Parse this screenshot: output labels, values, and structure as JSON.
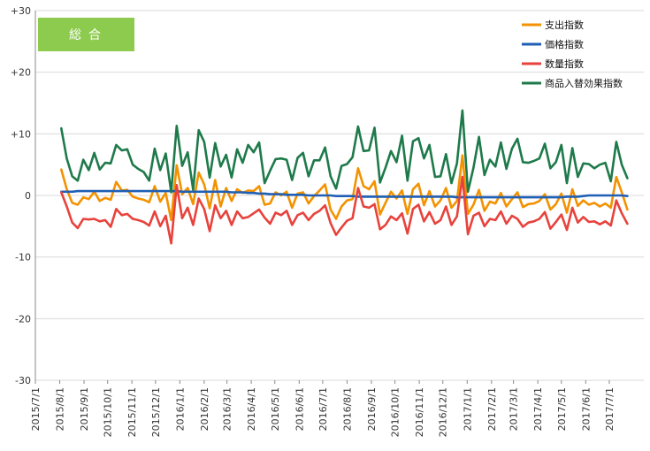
{
  "chart_data": {
    "type": "line",
    "title": "総合",
    "ylim": [
      -30,
      30
    ],
    "y_ticks": [
      30,
      20,
      10,
      0,
      -10,
      -20,
      -30
    ],
    "y_tick_labels": [
      "+30",
      "+20",
      "+10",
      "0",
      "-10",
      "-20",
      "-30"
    ],
    "x_tick_labels": [
      "2015/7/1",
      "2015/8/1",
      "2015/9/1",
      "2015/10/1",
      "2015/11/1",
      "2015/12/1",
      "2016/1/1",
      "2016/2/1",
      "2016/3/1",
      "2016/4/1",
      "2016/5/1",
      "2016/6/1",
      "2016/7/1",
      "2016/8/1",
      "2016/9/1",
      "2016/10/1",
      "2016/11/1",
      "2016/12/1",
      "2017/1/1",
      "2017/2/1",
      "2017/3/1",
      "2017/4/1",
      "2017/5/1",
      "2017/6/1",
      "2017/7/1"
    ],
    "x_start": "2015/7/1",
    "x_end": "2017/8/14",
    "series_start": "2015/8/3",
    "series_interval": "weekly",
    "legend_position": "top-right",
    "grid": "horizontal",
    "series": [
      {
        "name": "支出指数",
        "color": "#F39200",
        "values": [
          4.2,
          1.0,
          -1.2,
          -1.5,
          -0.3,
          -0.6,
          0.6,
          -0.9,
          -0.4,
          -0.7,
          2.2,
          0.8,
          0.9,
          -0.2,
          -0.5,
          -0.7,
          -1.1,
          1.5,
          -1.0,
          0.4,
          -4.0,
          4.9,
          0.2,
          1.2,
          -1.4,
          3.7,
          1.8,
          -2.1,
          2.5,
          -1.8,
          1.2,
          -0.9,
          1.0,
          0.4,
          0.8,
          0.7,
          1.5,
          -1.5,
          -1.3,
          0.5,
          0.0,
          0.6,
          -2.0,
          0.3,
          0.5,
          -1.3,
          -0.1,
          0.8,
          1.8,
          -2.3,
          -3.8,
          -1.8,
          -0.8,
          -0.6,
          4.4,
          1.5,
          1.0,
          2.3,
          -3.1,
          -1.2,
          0.6,
          -0.5,
          0.8,
          -3.0,
          1.0,
          1.9,
          -1.6,
          0.7,
          -1.8,
          -0.8,
          1.2,
          -2.0,
          -0.9,
          6.5,
          -3.0,
          -1.5,
          0.9,
          -2.5,
          -1.0,
          -1.3,
          0.4,
          -1.8,
          -0.6,
          0.5,
          -1.9,
          -1.4,
          -1.3,
          -0.9,
          0.2,
          -2.3,
          -1.4,
          0.3,
          -2.8,
          1.0,
          -1.7,
          -0.8,
          -1.5,
          -1.2,
          -1.8,
          -1.3,
          -2.0,
          3.0,
          0.5,
          -2.3
        ]
      },
      {
        "name": "価格指数",
        "color": "#1F5FB5",
        "values": [
          0.6,
          0.6,
          0.6,
          0.7,
          0.7,
          0.7,
          0.7,
          0.7,
          0.7,
          0.7,
          0.7,
          0.7,
          0.7,
          0.7,
          0.7,
          0.7,
          0.7,
          0.7,
          0.7,
          0.7,
          0.7,
          0.7,
          0.6,
          0.6,
          0.6,
          0.6,
          0.6,
          0.6,
          0.6,
          0.6,
          0.6,
          0.5,
          0.5,
          0.5,
          0.4,
          0.4,
          0.3,
          0.3,
          0.2,
          0.2,
          0.2,
          0.1,
          0.1,
          0.1,
          0.1,
          0.0,
          0.0,
          0.0,
          0.0,
          0.0,
          -0.1,
          -0.1,
          -0.1,
          -0.1,
          -0.2,
          -0.2,
          -0.2,
          -0.2,
          -0.2,
          -0.2,
          -0.2,
          -0.2,
          -0.2,
          -0.2,
          -0.2,
          -0.2,
          -0.2,
          -0.2,
          -0.2,
          -0.2,
          -0.2,
          -0.2,
          -0.3,
          -0.3,
          -0.3,
          -0.3,
          -0.3,
          -0.3,
          -0.3,
          -0.3,
          -0.3,
          -0.3,
          -0.3,
          -0.3,
          -0.3,
          -0.3,
          -0.3,
          -0.3,
          -0.3,
          -0.3,
          -0.3,
          -0.3,
          -0.2,
          -0.2,
          -0.2,
          -0.1,
          0.0,
          0.0,
          0.0,
          0.0,
          0.0,
          0.0,
          0.0,
          -0.1
        ]
      },
      {
        "name": "数量指数",
        "color": "#E8423C",
        "values": [
          0.5,
          -1.8,
          -4.4,
          -5.3,
          -3.8,
          -3.9,
          -3.8,
          -4.2,
          -4.0,
          -5.1,
          -2.2,
          -3.2,
          -3.0,
          -3.8,
          -4.0,
          -4.3,
          -4.9,
          -2.6,
          -5.0,
          -3.3,
          -7.8,
          1.7,
          -3.7,
          -2.0,
          -4.8,
          -0.5,
          -2.2,
          -5.8,
          -1.6,
          -3.7,
          -2.5,
          -4.8,
          -2.6,
          -3.7,
          -3.5,
          -2.9,
          -2.3,
          -3.6,
          -4.6,
          -2.8,
          -3.2,
          -2.5,
          -4.8,
          -3.2,
          -2.8,
          -4.0,
          -3.0,
          -2.5,
          -1.6,
          -4.5,
          -6.4,
          -5.2,
          -4.1,
          -3.7,
          1.2,
          -1.8,
          -2.0,
          -1.4,
          -5.5,
          -4.8,
          -3.4,
          -4.0,
          -2.9,
          -6.2,
          -2.2,
          -1.5,
          -4.2,
          -2.7,
          -4.6,
          -4.0,
          -1.8,
          -4.8,
          -3.4,
          3.0,
          -6.3,
          -3.3,
          -2.8,
          -5.0,
          -3.8,
          -4.0,
          -2.6,
          -4.6,
          -3.3,
          -3.8,
          -5.1,
          -4.4,
          -4.2,
          -3.8,
          -2.7,
          -5.4,
          -4.3,
          -3.1,
          -5.6,
          -2.0,
          -4.4,
          -3.5,
          -4.3,
          -4.2,
          -4.7,
          -4.2,
          -4.9,
          -0.8,
          -2.9,
          -4.6
        ]
      },
      {
        "name": "商品入替効果指数",
        "color": "#1E7A4A",
        "values": [
          10.9,
          6.0,
          3.1,
          2.4,
          5.8,
          4.1,
          6.9,
          4.2,
          5.3,
          5.2,
          8.2,
          7.3,
          7.5,
          5.0,
          4.3,
          3.8,
          2.4,
          7.6,
          4.1,
          6.8,
          0.5,
          11.3,
          4.8,
          7.0,
          0.9,
          10.6,
          8.7,
          2.9,
          8.5,
          4.7,
          6.6,
          2.9,
          7.5,
          5.3,
          8.2,
          7.0,
          8.6,
          2.0,
          4.0,
          5.9,
          6.0,
          5.8,
          2.5,
          6.1,
          6.9,
          3.1,
          5.7,
          5.7,
          7.8,
          3.1,
          1.1,
          4.8,
          5.1,
          6.2,
          11.2,
          7.2,
          7.3,
          11.0,
          2.1,
          4.5,
          7.2,
          5.4,
          9.7,
          2.4,
          8.8,
          9.3,
          6.0,
          8.2,
          3.0,
          3.1,
          6.7,
          2.0,
          5.2,
          13.8,
          0.6,
          4.5,
          9.5,
          3.3,
          5.8,
          4.7,
          8.6,
          4.3,
          7.6,
          9.2,
          5.4,
          5.3,
          5.6,
          6.0,
          8.4,
          4.4,
          5.4,
          8.2,
          2.0,
          7.7,
          3.0,
          5.2,
          5.1,
          4.4,
          5.0,
          5.3,
          2.3,
          8.7,
          5.0,
          2.8
        ]
      }
    ]
  }
}
